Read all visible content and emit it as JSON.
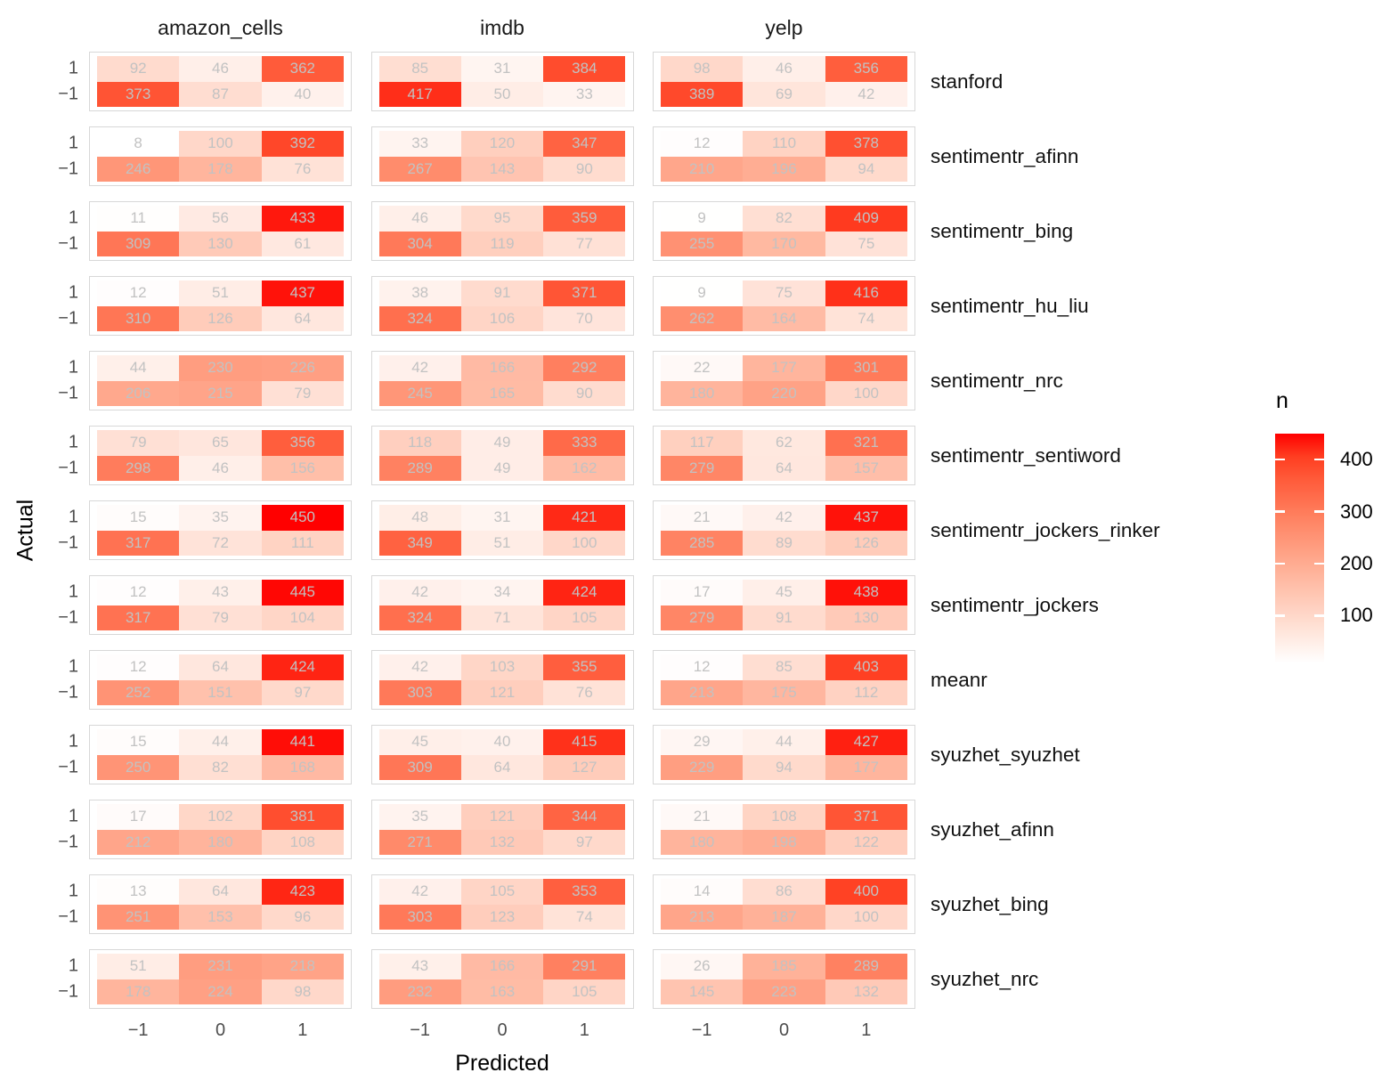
{
  "chart_data": {
    "type": "heatmap",
    "facet_columns": [
      "amazon_cells",
      "imdb",
      "yelp"
    ],
    "x": {
      "label": "Predicted",
      "ticks": [
        "−1",
        "0",
        "1"
      ]
    },
    "y": {
      "label": "Actual",
      "ticks": [
        "1",
        "−1"
      ]
    },
    "legend": {
      "title": "n",
      "ticks": [
        400,
        300,
        200,
        100
      ],
      "low_color": "#FFFFFF",
      "high_color": "#FF0000",
      "domain": [
        8,
        450
      ]
    },
    "methods": [
      {
        "method": "stanford",
        "datasets": [
          [
            [
              92,
              46,
              362
            ],
            [
              373,
              87,
              40
            ]
          ],
          [
            [
              85,
              31,
              384
            ],
            [
              417,
              50,
              33
            ]
          ],
          [
            [
              98,
              46,
              356
            ],
            [
              389,
              69,
              42
            ]
          ]
        ]
      },
      {
        "method": "sentimentr_afinn",
        "datasets": [
          [
            [
              8,
              100,
              392
            ],
            [
              246,
              178,
              76
            ]
          ],
          [
            [
              33,
              120,
              347
            ],
            [
              267,
              143,
              90
            ]
          ],
          [
            [
              12,
              110,
              378
            ],
            [
              210,
              196,
              94
            ]
          ]
        ]
      },
      {
        "method": "sentimentr_bing",
        "datasets": [
          [
            [
              11,
              56,
              433
            ],
            [
              309,
              130,
              61
            ]
          ],
          [
            [
              46,
              95,
              359
            ],
            [
              304,
              119,
              77
            ]
          ],
          [
            [
              9,
              82,
              409
            ],
            [
              255,
              170,
              75
            ]
          ]
        ]
      },
      {
        "method": "sentimentr_hu_liu",
        "datasets": [
          [
            [
              12,
              51,
              437
            ],
            [
              310,
              126,
              64
            ]
          ],
          [
            [
              38,
              91,
              371
            ],
            [
              324,
              106,
              70
            ]
          ],
          [
            [
              9,
              75,
              416
            ],
            [
              262,
              164,
              74
            ]
          ]
        ]
      },
      {
        "method": "sentimentr_nrc",
        "datasets": [
          [
            [
              44,
              230,
              226
            ],
            [
              206,
              215,
              79
            ]
          ],
          [
            [
              42,
              166,
              292
            ],
            [
              245,
              165,
              90
            ]
          ],
          [
            [
              22,
              177,
              301
            ],
            [
              180,
              220,
              100
            ]
          ]
        ]
      },
      {
        "method": "sentimentr_sentiword",
        "datasets": [
          [
            [
              79,
              65,
              356
            ],
            [
              298,
              46,
              156
            ]
          ],
          [
            [
              118,
              49,
              333
            ],
            [
              289,
              49,
              162
            ]
          ],
          [
            [
              117,
              62,
              321
            ],
            [
              279,
              64,
              157
            ]
          ]
        ]
      },
      {
        "method": "sentimentr_jockers_rinker",
        "datasets": [
          [
            [
              15,
              35,
              450
            ],
            [
              317,
              72,
              111
            ]
          ],
          [
            [
              48,
              31,
              421
            ],
            [
              349,
              51,
              100
            ]
          ],
          [
            [
              21,
              42,
              437
            ],
            [
              285,
              89,
              126
            ]
          ]
        ]
      },
      {
        "method": "sentimentr_jockers",
        "datasets": [
          [
            [
              12,
              43,
              445
            ],
            [
              317,
              79,
              104
            ]
          ],
          [
            [
              42,
              34,
              424
            ],
            [
              324,
              71,
              105
            ]
          ],
          [
            [
              17,
              45,
              438
            ],
            [
              279,
              91,
              130
            ]
          ]
        ]
      },
      {
        "method": "meanr",
        "datasets": [
          [
            [
              12,
              64,
              424
            ],
            [
              252,
              151,
              97
            ]
          ],
          [
            [
              42,
              103,
              355
            ],
            [
              303,
              121,
              76
            ]
          ],
          [
            [
              12,
              85,
              403
            ],
            [
              213,
              175,
              112
            ]
          ]
        ]
      },
      {
        "method": "syuzhet_syuzhet",
        "datasets": [
          [
            [
              15,
              44,
              441
            ],
            [
              250,
              82,
              168
            ]
          ],
          [
            [
              45,
              40,
              415
            ],
            [
              309,
              64,
              127
            ]
          ],
          [
            [
              29,
              44,
              427
            ],
            [
              229,
              94,
              177
            ]
          ]
        ]
      },
      {
        "method": "syuzhet_afinn",
        "datasets": [
          [
            [
              17,
              102,
              381
            ],
            [
              212,
              180,
              108
            ]
          ],
          [
            [
              35,
              121,
              344
            ],
            [
              271,
              132,
              97
            ]
          ],
          [
            [
              21,
              108,
              371
            ],
            [
              180,
              198,
              122
            ]
          ]
        ]
      },
      {
        "method": "syuzhet_bing",
        "datasets": [
          [
            [
              13,
              64,
              423
            ],
            [
              251,
              153,
              96
            ]
          ],
          [
            [
              42,
              105,
              353
            ],
            [
              303,
              123,
              74
            ]
          ],
          [
            [
              14,
              86,
              400
            ],
            [
              213,
              187,
              100
            ]
          ]
        ]
      },
      {
        "method": "syuzhet_nrc",
        "datasets": [
          [
            [
              51,
              231,
              218
            ],
            [
              178,
              224,
              98
            ]
          ],
          [
            [
              43,
              166,
              291
            ],
            [
              232,
              163,
              105
            ]
          ],
          [
            [
              26,
              185,
              289
            ],
            [
              145,
              223,
              132
            ]
          ]
        ]
      }
    ]
  }
}
